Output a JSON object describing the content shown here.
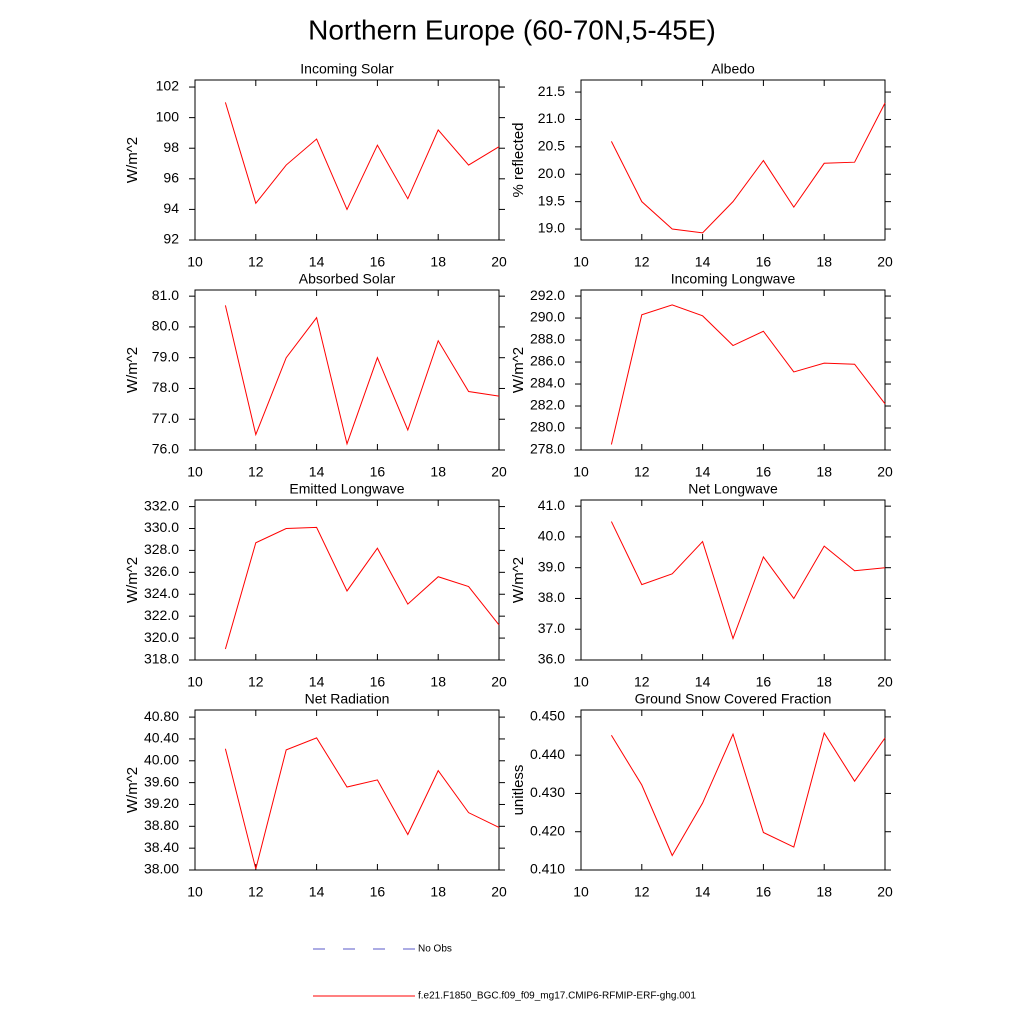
{
  "title": "Northern Europe (60-70N,5-45E)",
  "legend": [
    {
      "name": "No Obs",
      "color": "#5a5ac8",
      "dashed": true
    },
    {
      "name": "f.e21.F1850_BGC.f09_f09_mg17.CMIP6-RFMIP-ERF-ghg.001",
      "color": "#ff0000",
      "dashed": false
    }
  ],
  "chart_data": [
    {
      "type": "line",
      "title": "Incoming Solar",
      "y_label": "W/m^2",
      "color": "#ff0000",
      "x": [
        11,
        12,
        13,
        14,
        15,
        16,
        17,
        18,
        19,
        20
      ],
      "values": [
        101.0,
        94.4,
        96.9,
        98.6,
        94.0,
        98.2,
        94.7,
        99.2,
        96.9,
        98.1
      ],
      "xlim": [
        10,
        20
      ],
      "xticks": [
        10,
        12,
        14,
        16,
        18,
        20
      ],
      "ylim": [
        92,
        102.46
      ],
      "yticks": [
        92,
        94,
        96,
        98,
        100,
        102
      ]
    },
    {
      "type": "line",
      "title": "Albedo",
      "y_label": "% reflected",
      "color": "#ff0000",
      "x": [
        11,
        12,
        13,
        14,
        15,
        16,
        17,
        18,
        19,
        20
      ],
      "values": [
        20.6,
        19.5,
        19.0,
        18.93,
        19.5,
        20.25,
        19.4,
        20.2,
        20.22,
        21.3
      ],
      "xlim": [
        10,
        20
      ],
      "xticks": [
        10,
        12,
        14,
        16,
        18,
        20
      ],
      "ylim": [
        18.8,
        21.72
      ],
      "yticks": [
        {
          "value": 19,
          "label": "19.0"
        },
        19.5,
        {
          "value": 20,
          "label": "20.0"
        },
        20.5,
        {
          "value": 21,
          "label": "21.0"
        },
        21.5
      ]
    },
    {
      "type": "line",
      "title": "Absorbed Solar",
      "y_label": "W/m^2",
      "color": "#ff0000",
      "x": [
        11,
        12,
        13,
        14,
        15,
        16,
        17,
        18,
        19,
        20
      ],
      "values": [
        80.7,
        76.5,
        79.0,
        80.3,
        76.2,
        79.0,
        76.65,
        79.55,
        77.9,
        77.75
      ],
      "xlim": [
        10,
        20
      ],
      "xticks": [
        10,
        12,
        14,
        16,
        18,
        20
      ],
      "ylim": [
        76,
        81.2
      ],
      "yticks": [
        {
          "value": 76,
          "label": "76.0"
        },
        {
          "value": 77,
          "label": "77.0"
        },
        {
          "value": 78,
          "label": "78.0"
        },
        {
          "value": 79,
          "label": "79.0"
        },
        {
          "value": 80,
          "label": "80.0"
        },
        {
          "value": 81,
          "label": "81.0"
        }
      ]
    },
    {
      "type": "line",
      "title": "Incoming Longwave",
      "y_label": "W/m^2",
      "color": "#ff0000",
      "x": [
        11,
        12,
        13,
        14,
        15,
        16,
        17,
        18,
        19,
        20
      ],
      "values": [
        278.5,
        290.3,
        291.2,
        290.2,
        287.5,
        288.8,
        285.1,
        285.9,
        285.8,
        282.2
      ],
      "xlim": [
        10,
        20
      ],
      "xticks": [
        10,
        12,
        14,
        16,
        18,
        20
      ],
      "ylim": [
        278,
        292.55
      ],
      "yticks": [
        {
          "value": 278,
          "label": "278.0"
        },
        {
          "value": 280,
          "label": "280.0"
        },
        {
          "value": 282,
          "label": "282.0"
        },
        {
          "value": 284,
          "label": "284.0"
        },
        {
          "value": 286,
          "label": "286.0"
        },
        {
          "value": 288,
          "label": "288.0"
        },
        {
          "value": 290,
          "label": "290.0"
        },
        {
          "value": 292,
          "label": "292.0"
        }
      ]
    },
    {
      "type": "line",
      "title": "Emitted Longwave",
      "y_label": "W/m^2",
      "color": "#ff0000",
      "x": [
        11,
        12,
        13,
        14,
        15,
        16,
        17,
        18,
        19,
        20
      ],
      "values": [
        319.0,
        328.7,
        330.0,
        330.1,
        324.3,
        328.2,
        323.1,
        325.6,
        324.7,
        321.2
      ],
      "xlim": [
        10,
        20
      ],
      "xticks": [
        10,
        12,
        14,
        16,
        18,
        20
      ],
      "ylim": [
        318,
        332.6
      ],
      "yticks": [
        {
          "value": 318,
          "label": "318.0"
        },
        {
          "value": 320,
          "label": "320.0"
        },
        {
          "value": 322,
          "label": "322.0"
        },
        {
          "value": 324,
          "label": "324.0"
        },
        {
          "value": 326,
          "label": "326.0"
        },
        {
          "value": 328,
          "label": "328.0"
        },
        {
          "value": 330,
          "label": "330.0"
        },
        {
          "value": 332,
          "label": "332.0"
        }
      ]
    },
    {
      "type": "line",
      "title": "Net Longwave",
      "y_label": "W/m^2",
      "color": "#ff0000",
      "x": [
        11,
        12,
        13,
        14,
        15,
        16,
        17,
        18,
        19,
        20
      ],
      "values": [
        40.5,
        38.45,
        38.8,
        39.85,
        36.7,
        39.35,
        38.0,
        39.7,
        38.9,
        39.0
      ],
      "xlim": [
        10,
        20
      ],
      "xticks": [
        10,
        12,
        14,
        16,
        18,
        20
      ],
      "ylim": [
        36,
        41.2
      ],
      "yticks": [
        {
          "value": 36,
          "label": "36.0"
        },
        {
          "value": 37,
          "label": "37.0"
        },
        {
          "value": 38,
          "label": "38.0"
        },
        {
          "value": 39,
          "label": "39.0"
        },
        {
          "value": 40,
          "label": "40.0"
        },
        {
          "value": 41,
          "label": "41.0"
        }
      ]
    },
    {
      "type": "line",
      "title": "Net Radiation",
      "y_label": "W/m^2",
      "color": "#ff0000",
      "x": [
        11,
        12,
        13,
        14,
        15,
        16,
        17,
        18,
        19,
        20
      ],
      "values": [
        40.22,
        38.02,
        40.2,
        40.42,
        39.52,
        39.65,
        38.65,
        39.82,
        39.05,
        38.78
      ],
      "xlim": [
        10,
        20
      ],
      "xticks": [
        10,
        12,
        14,
        16,
        18,
        20
      ],
      "ylim": [
        38,
        40.93
      ],
      "yticks": [
        {
          "value": 38,
          "label": "38.00"
        },
        {
          "value": 38.4,
          "label": "38.40"
        },
        {
          "value": 38.8,
          "label": "38.80"
        },
        {
          "value": 39.2,
          "label": "39.20"
        },
        {
          "value": 39.6,
          "label": "39.60"
        },
        {
          "value": 40,
          "label": "40.00"
        },
        {
          "value": 40.4,
          "label": "40.40"
        },
        {
          "value": 40.8,
          "label": "40.80"
        }
      ]
    },
    {
      "type": "line",
      "title": "Ground Snow Covered Fraction",
      "y_label": "unitless",
      "color": "#ff0000",
      "x": [
        11,
        12,
        13,
        14,
        15,
        16,
        17,
        18,
        19,
        20
      ],
      "values": [
        0.4452,
        0.4322,
        0.4138,
        0.4275,
        0.4455,
        0.4198,
        0.416,
        0.4458,
        0.4332,
        0.4445
      ],
      "xlim": [
        10,
        20
      ],
      "xticks": [
        10,
        12,
        14,
        16,
        18,
        20
      ],
      "ylim": [
        0.41,
        0.4518
      ],
      "yticks": [
        {
          "value": 0.41,
          "label": "0.410"
        },
        {
          "value": 0.42,
          "label": "0.420"
        },
        {
          "value": 0.43,
          "label": "0.430"
        },
        {
          "value": 0.44,
          "label": "0.440"
        },
        {
          "value": 0.45,
          "label": "0.450"
        }
      ]
    }
  ]
}
